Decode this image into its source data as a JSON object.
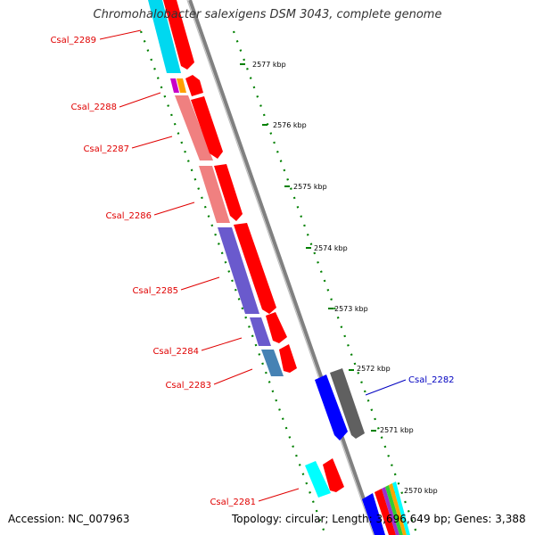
{
  "header": {
    "title": "Chromohalobacter salexigens DSM 3043, complete genome"
  },
  "footer": {
    "accession": "Accession: NC_007963",
    "summary": "Topology: circular; Length: 3,696,649 bp; Genes: 3,388"
  },
  "ticks": [
    "2577 kbp",
    "2576 kbp",
    "2575 kbp",
    "2574 kbp",
    "2573 kbp",
    "2572 kbp",
    "2571 kbp",
    "2570 kbp"
  ],
  "genes": [
    {
      "label": "Csal_2289",
      "color": "#e00000"
    },
    {
      "label": "Csal_2288",
      "color": "#e00000"
    },
    {
      "label": "Csal_2287",
      "color": "#e00000"
    },
    {
      "label": "Csal_2286",
      "color": "#e00000"
    },
    {
      "label": "Csal_2285",
      "color": "#e00000"
    },
    {
      "label": "Csal_2284",
      "color": "#e00000"
    },
    {
      "label": "Csal_2283",
      "color": "#e00000"
    },
    {
      "label": "Csal_2282",
      "color": "#0000c0"
    },
    {
      "label": "Csal_2281",
      "color": "#e00000"
    }
  ],
  "colors": {
    "backbone": "#808080",
    "cds": "#ff0000",
    "cds_reverse": "#0000ff",
    "cyan": "#00d8f0",
    "pink": "#f08080",
    "purple": "#6a5acd",
    "steelblue": "#4682b4",
    "gray": "#606060",
    "tick": "#008000"
  }
}
